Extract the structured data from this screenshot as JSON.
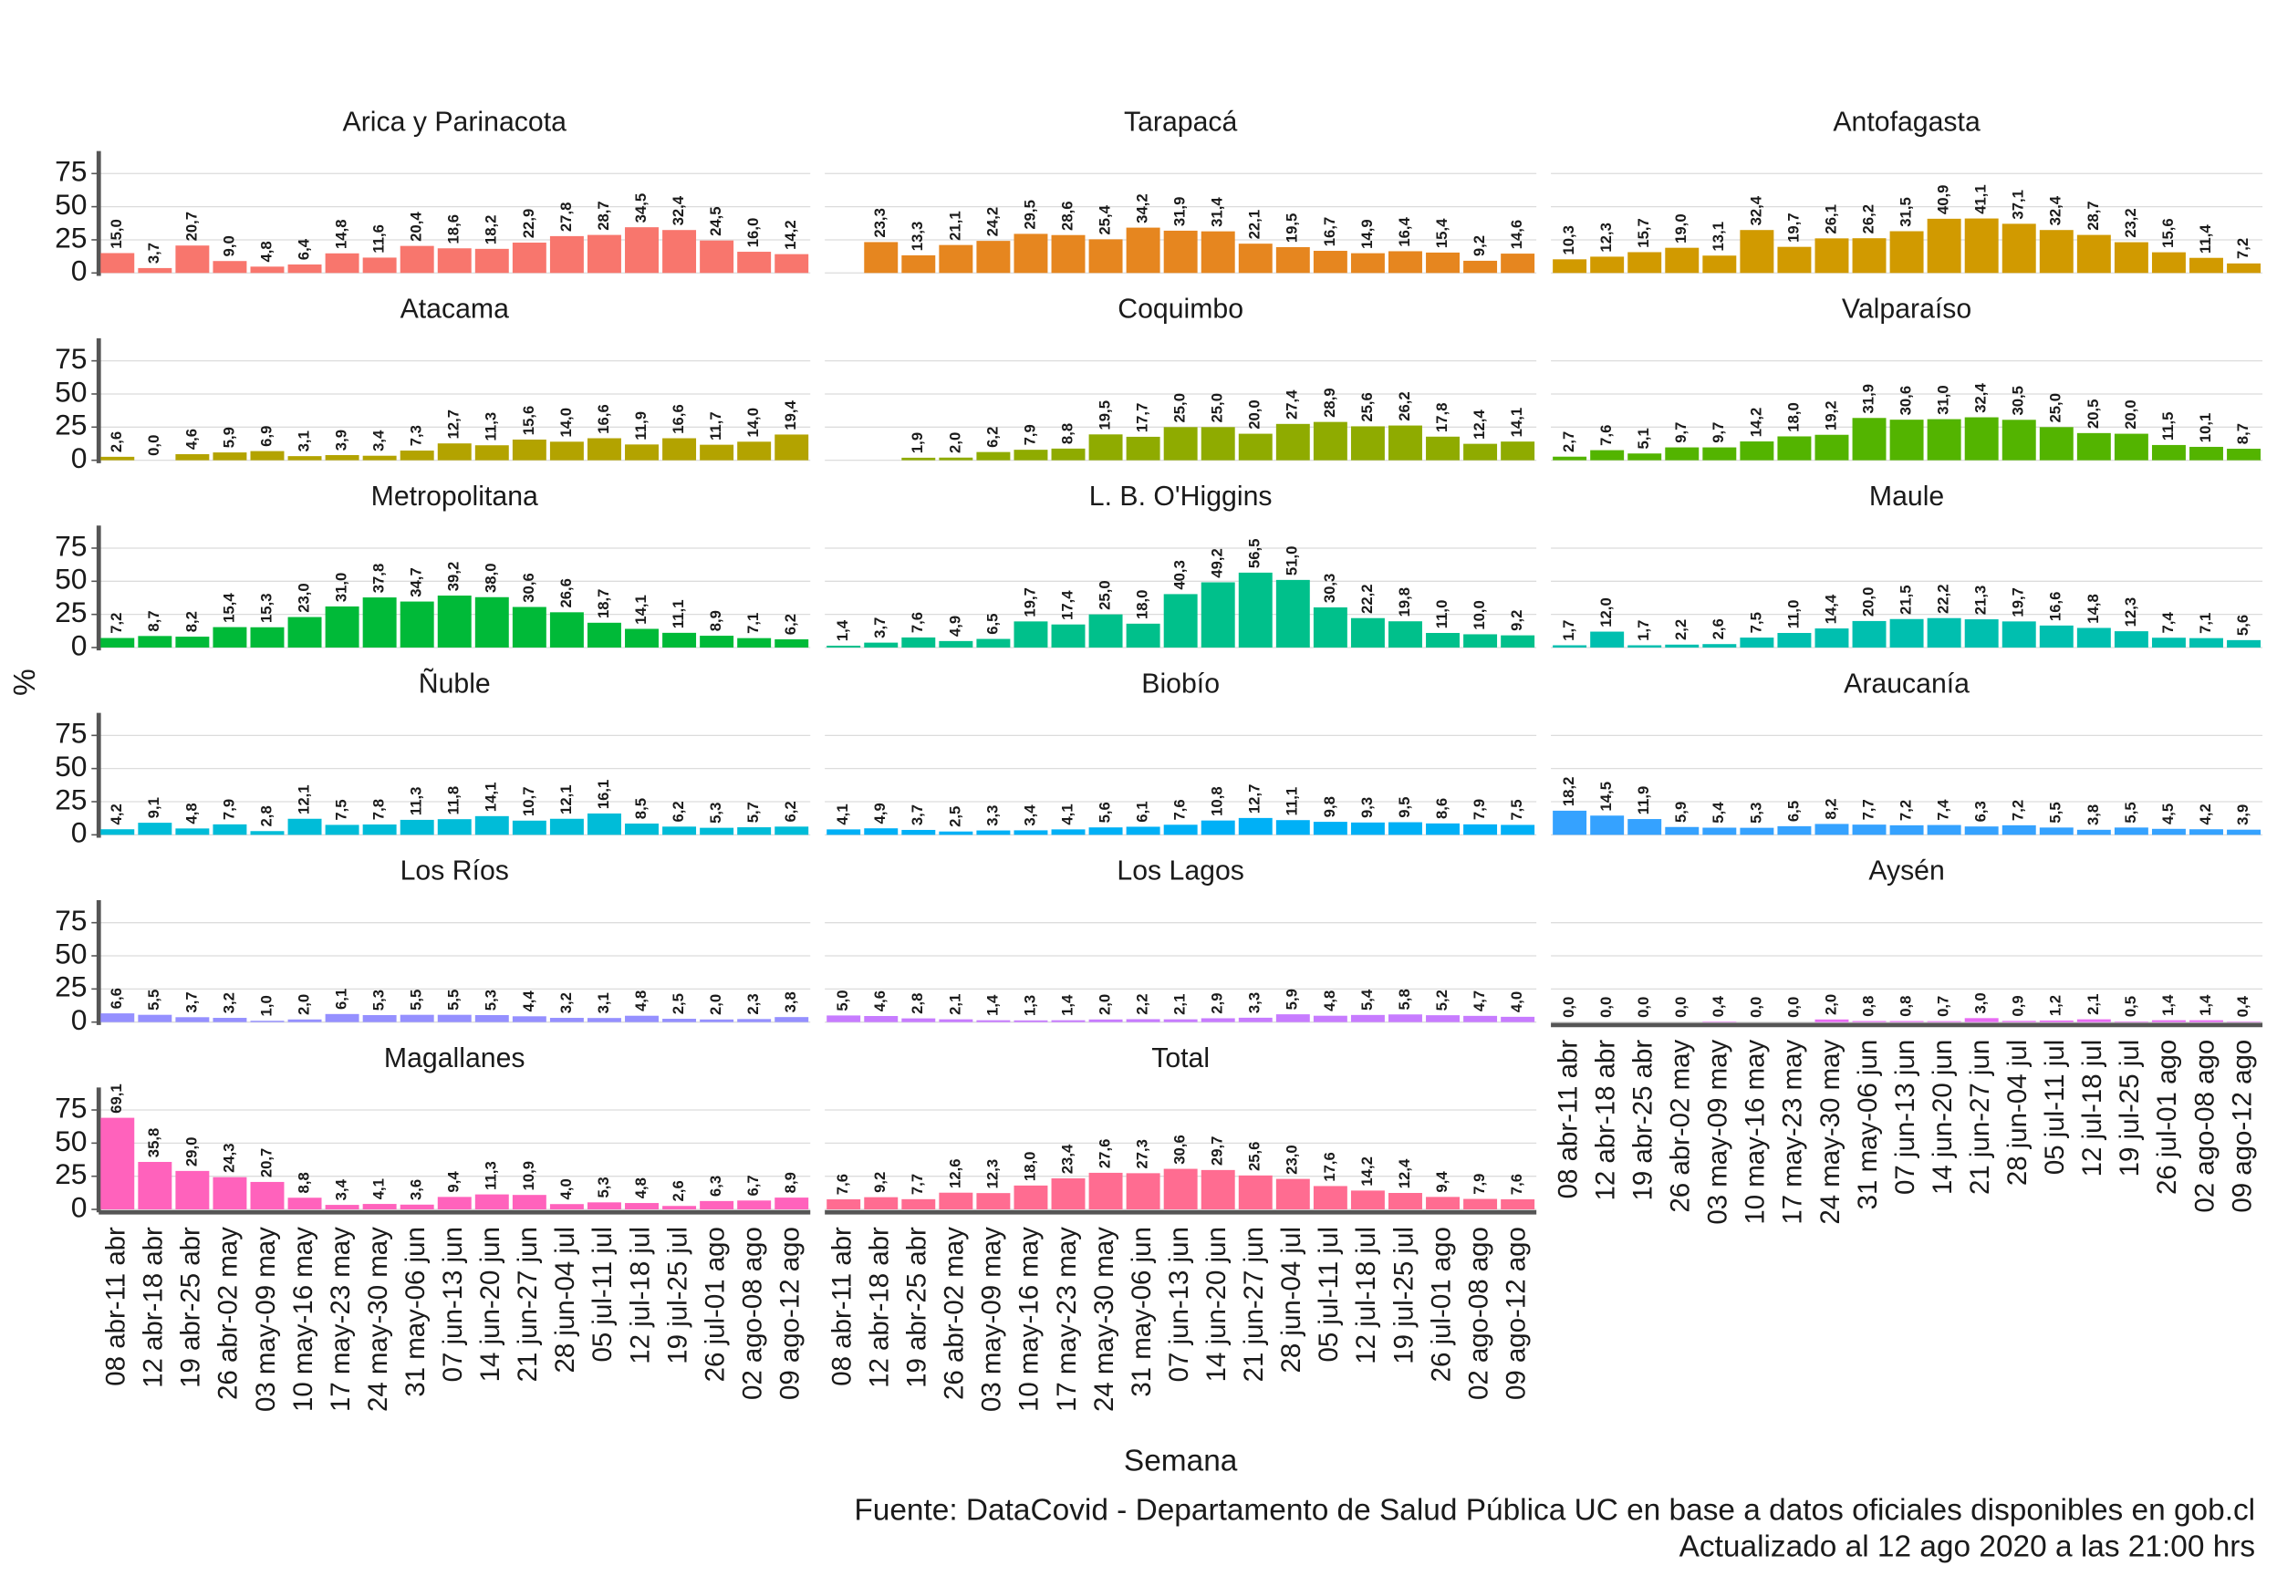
{
  "chart_data": {
    "type": "bar",
    "y_label": "%",
    "x_label": "Semana",
    "source": "Fuente: DataCovid - Departamento de Salud Pública UC en base a datos oficiales disponibles en gob.cl",
    "updated": "Actualizado al 12 ago 2020 a las 21:00 hrs",
    "categories": [
      "08 abr-11 abr",
      "12 abr-18 abr",
      "19 abr-25 abr",
      "26 abr-02 may",
      "03 may-09 may",
      "10 may-16 may",
      "17 may-23 may",
      "24 may-30 may",
      "31 may-06 jun",
      "07 jun-13 jun",
      "14 jun-20 jun",
      "21 jun-27 jun",
      "28 jun-04 jul",
      "05 jul-11 jul",
      "12 jul-18 jul",
      "19 jul-25 jul",
      "26 jul-01 ago",
      "02 ago-08 ago",
      "09 ago-12 ago"
    ],
    "ylim": [
      0,
      92
    ],
    "yticks": [
      0,
      25,
      50,
      75
    ],
    "grid": true,
    "panels": [
      {
        "title": "Arica y Parinacota",
        "color": "#F8766D",
        "values": [
          15.0,
          3.7,
          20.7,
          9.0,
          4.8,
          6.4,
          14.8,
          11.6,
          20.4,
          18.6,
          18.2,
          22.9,
          27.8,
          28.7,
          34.5,
          32.4,
          24.5,
          16.0,
          14.2
        ],
        "value_labels": [
          "15,0",
          "3,7",
          "20,7",
          "9,0",
          "4,8",
          "6,4",
          "14,8",
          "11,6",
          "20,4",
          "18,6",
          "18,2",
          "22,9",
          "27,8",
          "28,7",
          "34,5",
          "32,4",
          "24,5",
          "16,0",
          "14,2"
        ]
      },
      {
        "title": "Tarapacá",
        "color": "#E6861F",
        "values": [
          null,
          23.3,
          13.3,
          21.1,
          24.2,
          29.5,
          28.6,
          25.4,
          34.2,
          31.9,
          31.4,
          22.1,
          19.5,
          16.7,
          14.9,
          16.4,
          15.4,
          9.2,
          14.6
        ],
        "value_labels": [
          null,
          "23,3",
          "13,3",
          "21,1",
          "24,2",
          "29,5",
          "28,6",
          "25,4",
          "34,2",
          "31,9",
          "31,4",
          "22,1",
          "19,5",
          "16,7",
          "14,9",
          "16,4",
          "15,4",
          "9,2",
          "14,6"
        ]
      },
      {
        "title": "Antofagasta",
        "color": "#D19A00",
        "values": [
          10.3,
          12.3,
          15.7,
          19.0,
          13.1,
          32.4,
          19.7,
          26.1,
          26.2,
          31.5,
          40.9,
          41.1,
          37.1,
          32.4,
          28.7,
          23.2,
          15.6,
          11.4,
          7.2
        ],
        "value_labels": [
          "10,3",
          "12,3",
          "15,7",
          "19,0",
          "13,1",
          "32,4",
          "19,7",
          "26,1",
          "26,2",
          "31,5",
          "40,9",
          "41,1",
          "37,1",
          "32,4",
          "28,7",
          "23,2",
          "15,6",
          "11,4",
          "7,2"
        ]
      },
      {
        "title": "Atacama",
        "color": "#B3A300",
        "values": [
          2.6,
          0.0,
          4.6,
          5.9,
          6.9,
          3.1,
          3.9,
          3.4,
          7.3,
          12.7,
          11.3,
          15.6,
          14.0,
          16.6,
          11.9,
          16.6,
          11.7,
          14.0,
          19.4
        ],
        "value_labels": [
          "2,6",
          "0,0",
          "4,6",
          "5,9",
          "6,9",
          "3,1",
          "3,9",
          "3,4",
          "7,3",
          "12,7",
          "11,3",
          "15,6",
          "14,0",
          "16,6",
          "11,9",
          "16,6",
          "11,7",
          "14,0",
          "19,4"
        ]
      },
      {
        "title": "Coquimbo",
        "color": "#8FAB00",
        "values": [
          null,
          null,
          1.9,
          2.0,
          6.2,
          7.9,
          8.8,
          19.5,
          17.7,
          25.0,
          25.0,
          20.0,
          27.4,
          28.9,
          25.6,
          26.2,
          17.8,
          12.4,
          14.1
        ],
        "value_labels": [
          null,
          null,
          "1,9",
          "2,0",
          "6,2",
          "7,9",
          "8,8",
          "19,5",
          "17,7",
          "25,0",
          "25,0",
          "20,0",
          "27,4",
          "28,9",
          "25,6",
          "26,2",
          "17,8",
          "12,4",
          "14,1"
        ]
      },
      {
        "title": "Valparaíso",
        "color": "#53B400",
        "values": [
          2.7,
          7.6,
          5.1,
          9.7,
          9.7,
          14.2,
          18.0,
          19.2,
          31.9,
          30.6,
          31.0,
          32.4,
          30.5,
          25.0,
          20.5,
          20.0,
          11.5,
          10.1,
          8.7
        ],
        "value_labels": [
          "2,7",
          "7,6",
          "5,1",
          "9,7",
          "9,7",
          "14,2",
          "18,0",
          "19,2",
          "31,9",
          "30,6",
          "31,0",
          "32,4",
          "30,5",
          "25,0",
          "20,5",
          "20,0",
          "11,5",
          "10,1",
          "8,7"
        ]
      },
      {
        "title": "Metropolitana",
        "color": "#00BA38",
        "values": [
          7.2,
          8.7,
          8.2,
          15.4,
          15.3,
          23.0,
          31.0,
          37.8,
          34.7,
          39.2,
          38.0,
          30.6,
          26.6,
          18.7,
          14.1,
          11.1,
          8.9,
          7.1,
          6.2
        ],
        "value_labels": [
          "7,2",
          "8,7",
          "8,2",
          "15,4",
          "15,3",
          "23,0",
          "31,0",
          "37,8",
          "34,7",
          "39,2",
          "38,0",
          "30,6",
          "26,6",
          "18,7",
          "14,1",
          "11,1",
          "8,9",
          "7,1",
          "6,2"
        ]
      },
      {
        "title": "L. B. O'Higgins",
        "color": "#00C08B",
        "values": [
          1.4,
          3.7,
          7.6,
          4.9,
          6.5,
          19.7,
          17.4,
          25.0,
          18.0,
          40.3,
          49.2,
          56.5,
          51.0,
          30.3,
          22.2,
          19.8,
          11.0,
          10.0,
          9.2
        ],
        "value_labels": [
          "1,4",
          "3,7",
          "7,6",
          "4,9",
          "6,5",
          "19,7",
          "17,4",
          "25,0",
          "18,0",
          "40,3",
          "49,2",
          "56,5",
          "51,0",
          "30,3",
          "22,2",
          "19,8",
          "11,0",
          "10,0",
          "9,2"
        ]
      },
      {
        "title": "Maule",
        "color": "#00BFAF",
        "values": [
          1.7,
          12.0,
          1.7,
          2.2,
          2.6,
          7.5,
          11.0,
          14.4,
          20.0,
          21.5,
          22.2,
          21.3,
          19.7,
          16.6,
          14.8,
          12.3,
          7.4,
          7.1,
          5.6
        ],
        "value_labels": [
          "1,7",
          "12,0",
          "1,7",
          "2,2",
          "2,6",
          "7,5",
          "11,0",
          "14,4",
          "20,0",
          "21,5",
          "22,2",
          "21,3",
          "19,7",
          "16,6",
          "14,8",
          "12,3",
          "7,4",
          "7,1",
          "5,6"
        ]
      },
      {
        "title": "Ñuble",
        "color": "#00BCD8",
        "values": [
          4.2,
          9.1,
          4.8,
          7.9,
          2.8,
          12.1,
          7.5,
          7.8,
          11.3,
          11.8,
          14.1,
          10.7,
          12.1,
          16.1,
          8.5,
          6.2,
          5.3,
          5.7,
          6.2
        ],
        "value_labels": [
          "4,2",
          "9,1",
          "4,8",
          "7,9",
          "2,8",
          "12,1",
          "7,5",
          "7,8",
          "11,3",
          "11,8",
          "14,1",
          "10,7",
          "12,1",
          "16,1",
          "8,5",
          "6,2",
          "5,3",
          "5,7",
          "6,2"
        ]
      },
      {
        "title": "Biobío",
        "color": "#00B0F6",
        "values": [
          4.1,
          4.9,
          3.7,
          2.5,
          3.3,
          3.4,
          4.1,
          5.6,
          6.1,
          7.6,
          10.8,
          12.7,
          11.1,
          9.8,
          9.3,
          9.5,
          8.6,
          7.9,
          7.5
        ],
        "value_labels": [
          "4,1",
          "4,9",
          "3,7",
          "2,5",
          "3,3",
          "3,4",
          "4,1",
          "5,6",
          "6,1",
          "7,6",
          "10,8",
          "12,7",
          "11,1",
          "9,8",
          "9,3",
          "9,5",
          "8,6",
          "7,9",
          "7,5"
        ]
      },
      {
        "title": "Araucanía",
        "color": "#35A2FF",
        "values": [
          18.2,
          14.5,
          11.9,
          5.9,
          5.4,
          5.3,
          6.5,
          8.2,
          7.7,
          7.2,
          7.4,
          6.3,
          7.2,
          5.5,
          3.8,
          5.5,
          4.5,
          4.2,
          3.9
        ],
        "value_labels": [
          "18,2",
          "14,5",
          "11,9",
          "5,9",
          "5,4",
          "5,3",
          "6,5",
          "8,2",
          "7,7",
          "7,2",
          "7,4",
          "6,3",
          "7,2",
          "5,5",
          "3,8",
          "5,5",
          "4,5",
          "4,2",
          "3,9"
        ]
      },
      {
        "title": "Los Ríos",
        "color": "#9590FF",
        "values": [
          6.6,
          5.5,
          3.7,
          3.2,
          1.0,
          2.0,
          6.1,
          5.3,
          5.5,
          5.5,
          5.3,
          4.4,
          3.2,
          3.1,
          4.8,
          2.5,
          2.0,
          2.3,
          3.8
        ],
        "value_labels": [
          "6,6",
          "5,5",
          "3,7",
          "3,2",
          "1,0",
          "2,0",
          "6,1",
          "5,3",
          "5,5",
          "5,5",
          "5,3",
          "4,4",
          "3,2",
          "3,1",
          "4,8",
          "2,5",
          "2,0",
          "2,3",
          "3,8"
        ]
      },
      {
        "title": "Los Lagos",
        "color": "#C77CFF",
        "values": [
          5.0,
          4.6,
          2.8,
          2.1,
          1.4,
          1.3,
          1.4,
          2.0,
          2.2,
          2.1,
          2.9,
          3.3,
          5.9,
          4.8,
          5.4,
          5.8,
          5.2,
          4.7,
          4.0
        ],
        "value_labels": [
          "5,0",
          "4,6",
          "2,8",
          "2,1",
          "1,4",
          "1,3",
          "1,4",
          "2,0",
          "2,2",
          "2,1",
          "2,9",
          "3,3",
          "5,9",
          "4,8",
          "5,4",
          "5,8",
          "5,2",
          "4,7",
          "4,0"
        ]
      },
      {
        "title": "Aysén",
        "color": "#E76BF3",
        "values": [
          0.0,
          0.0,
          0.0,
          0.0,
          0.4,
          0.0,
          0.0,
          2.0,
          0.8,
          0.8,
          0.7,
          3.0,
          0.9,
          1.2,
          2.1,
          0.5,
          1.4,
          1.4,
          0.4
        ],
        "value_labels": [
          "0,0",
          "0,0",
          "0,0",
          "0,0",
          "0,4",
          "0,0",
          "0,0",
          "2,0",
          "0,8",
          "0,8",
          "0,7",
          "3,0",
          "0,9",
          "1,2",
          "2,1",
          "0,5",
          "1,4",
          "1,4",
          "0,4"
        ]
      },
      {
        "title": "Magallanes",
        "color": "#FF62BC",
        "values": [
          69.1,
          35.8,
          29.0,
          24.3,
          20.7,
          8.8,
          3.4,
          4.1,
          3.6,
          9.4,
          11.3,
          10.9,
          4.0,
          5.3,
          4.8,
          2.6,
          6.3,
          6.7,
          8.9
        ],
        "value_labels": [
          "69,1",
          "35,8",
          "29,0",
          "24,3",
          "20,7",
          "8,8",
          "3,4",
          "4,1",
          "3,6",
          "9,4",
          "11,3",
          "10,9",
          "4,0",
          "5,3",
          "4,8",
          "2,6",
          "6,3",
          "6,7",
          "8,9"
        ]
      },
      {
        "title": "Total",
        "color": "#FF6C91",
        "values": [
          7.6,
          9.2,
          7.7,
          12.6,
          12.3,
          18.0,
          23.4,
          27.6,
          27.3,
          30.6,
          29.7,
          25.6,
          23.0,
          17.6,
          14.2,
          12.4,
          9.4,
          7.9,
          7.6
        ],
        "value_labels": [
          "7,6",
          "9,2",
          "7,7",
          "12,6",
          "12,3",
          "18,0",
          "23,4",
          "27,6",
          "27,3",
          "30,6",
          "29,7",
          "25,6",
          "23,0",
          "17,6",
          "14,2",
          "12,4",
          "9,4",
          "7,9",
          "7,6"
        ]
      }
    ]
  }
}
